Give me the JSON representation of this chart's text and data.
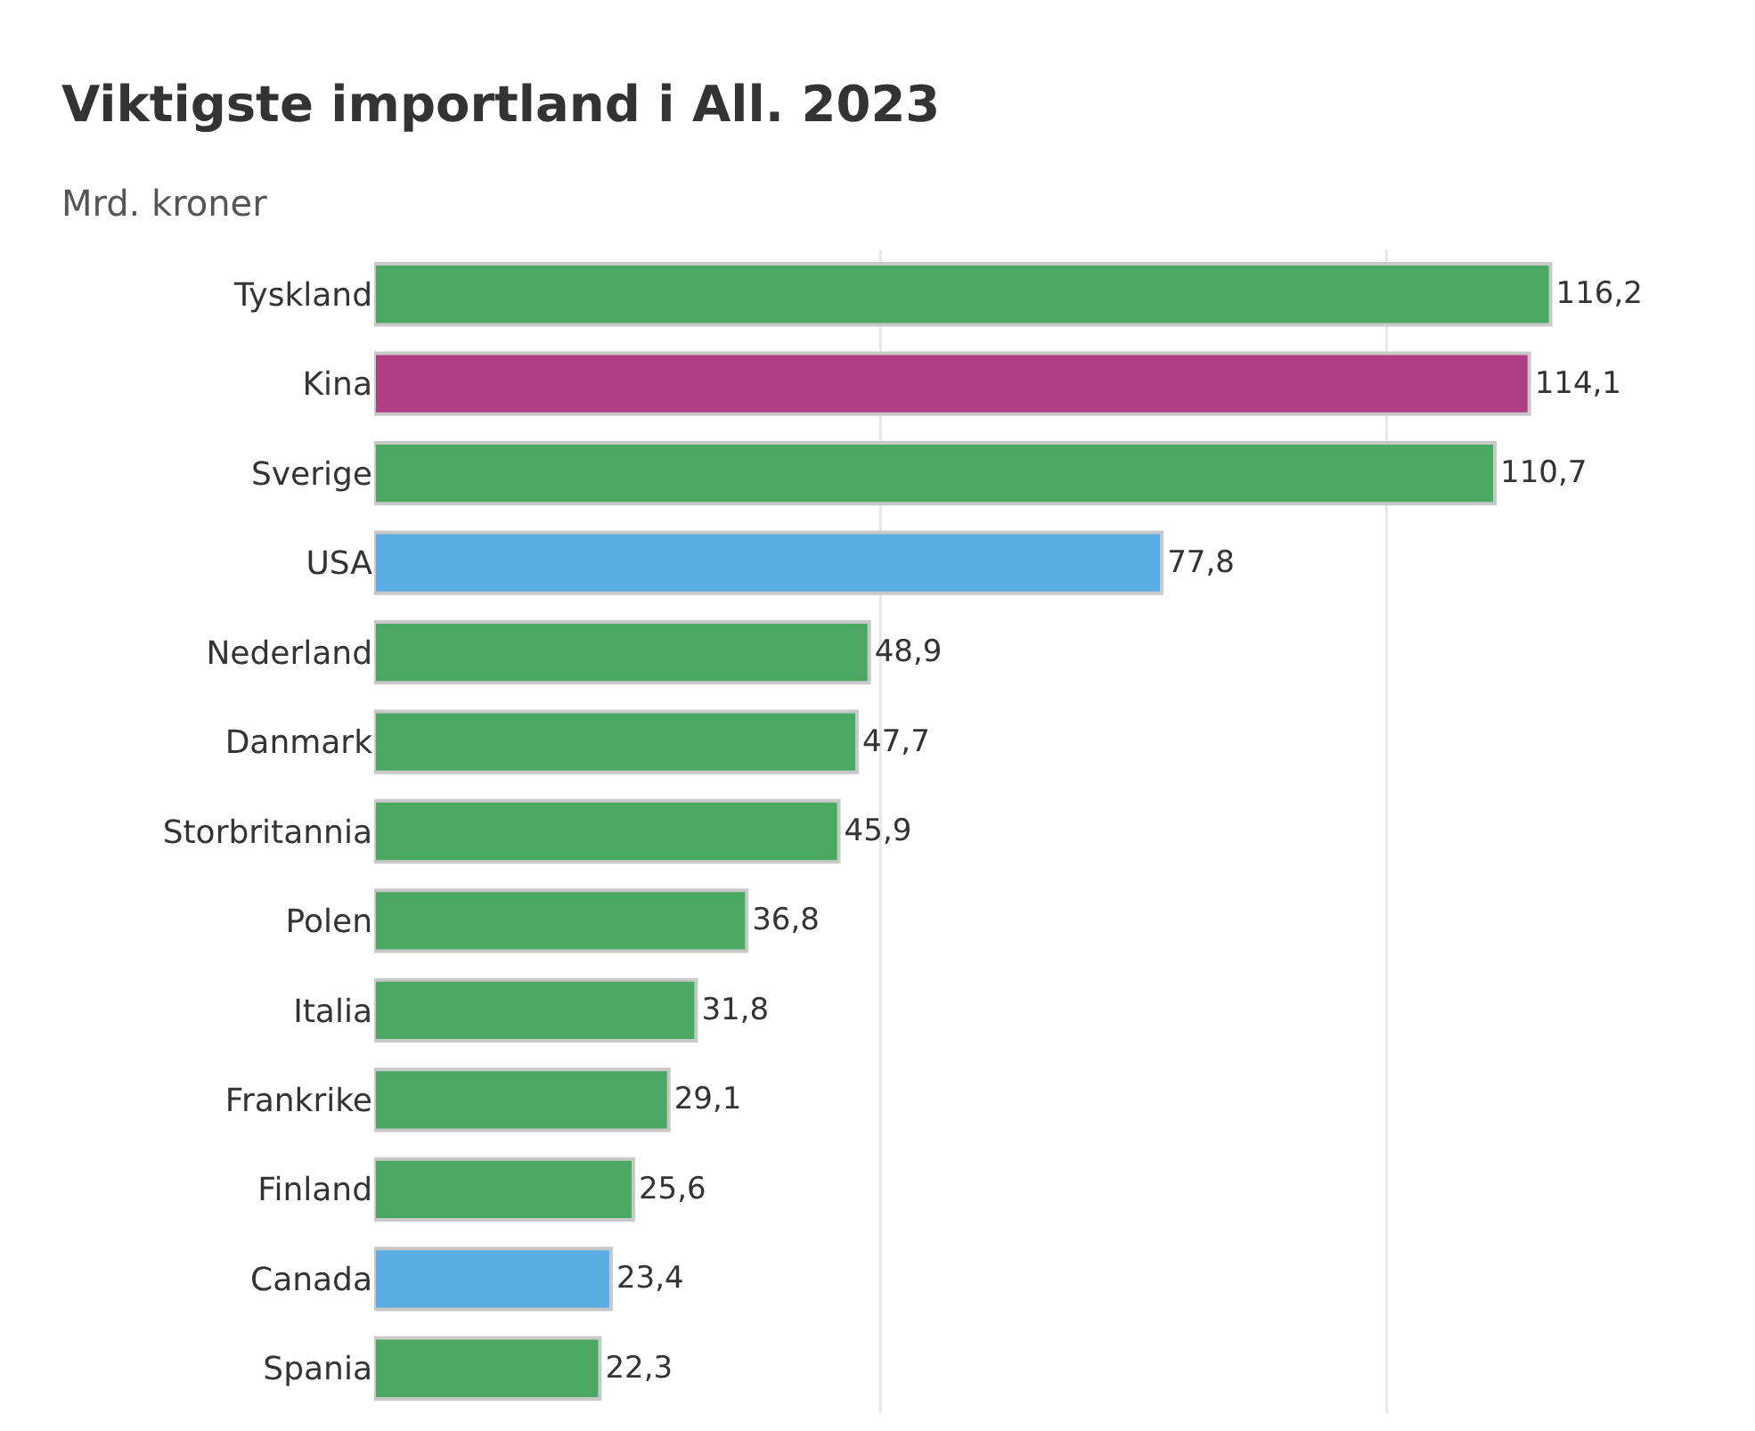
{
  "chart_data": {
    "type": "bar",
    "orientation": "horizontal",
    "title": "Viktigste importland i All. 2023",
    "subtitle": "Mrd. kroner",
    "categories": [
      "Tyskland",
      "Kina",
      "Sverige",
      "USA",
      "Nederland",
      "Danmark",
      "Storbritannia",
      "Polen",
      "Italia",
      "Frankrike",
      "Finland",
      "Canada",
      "Spania"
    ],
    "values": [
      116.2,
      114.1,
      110.7,
      77.8,
      48.9,
      47.7,
      45.9,
      36.8,
      31.8,
      29.1,
      25.6,
      23.4,
      22.3
    ],
    "value_labels": [
      "116,2",
      "114,1",
      "110,7",
      "77,8",
      "48,9",
      "47,7",
      "45,9",
      "36,8",
      "31,8",
      "29,1",
      "25,6",
      "23,4",
      "22,3"
    ],
    "colors": [
      "#4ba862",
      "#b03e84",
      "#4ba862",
      "#5aaee3",
      "#4ba862",
      "#4ba862",
      "#4ba862",
      "#4ba862",
      "#4ba862",
      "#4ba862",
      "#4ba862",
      "#5aaee3",
      "#4ba862"
    ],
    "ref_lines": [
      {
        "axis": "x",
        "value": 50,
        "color": "#e6e6e6"
      },
      {
        "axis": "x",
        "value": 100,
        "color": "#e6e6e6"
      }
    ],
    "tick_labels": "y"
  }
}
